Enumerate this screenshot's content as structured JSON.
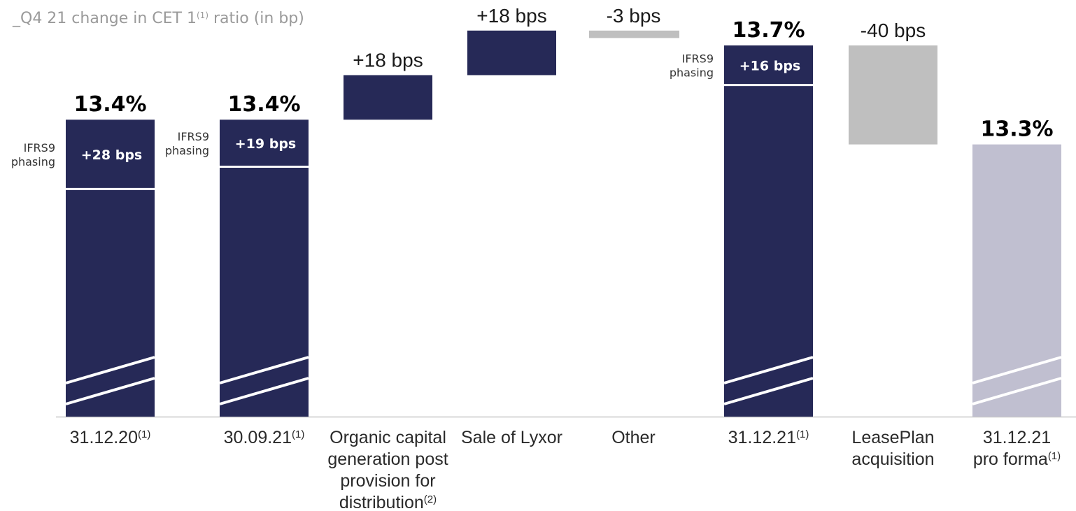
{
  "chart_data": {
    "type": "bar",
    "subtype": "waterfall",
    "title": "_Q4 21 change in CET 1",
    "title_sup": "(1)",
    "title_tail": " ratio (in bp)",
    "colors": {
      "total": "#262957",
      "change_positive": "#262957",
      "change_negative": "#bfbfbf",
      "proforma": "#c0bfd0",
      "separator": "#ffffff",
      "axis": "#c8c8c8"
    },
    "axis_break": true,
    "bars": [
      {
        "kind": "total",
        "category": "31.12.20",
        "cat_sup": "(1)",
        "value": 13.4,
        "label": "13.4%",
        "ifrs9_bps": 28,
        "ifrs9_label": "+28 bps",
        "side_label": [
          "IFRS9",
          "phasing"
        ]
      },
      {
        "kind": "total",
        "category": "30.09.21",
        "cat_sup": "(1)",
        "value": 13.4,
        "label": "13.4%",
        "ifrs9_bps": 19,
        "ifrs9_label": "+19 bps",
        "side_label": [
          "IFRS9",
          "phasing"
        ]
      },
      {
        "kind": "change",
        "category_lines": [
          "Organic capital",
          "generation post",
          "provision for",
          "distribution"
        ],
        "cat_sup": "(2)",
        "start": 13.4,
        "delta_bps": 18,
        "label": "+18 bps"
      },
      {
        "kind": "change",
        "category_lines": [
          "Sale of Lyxor"
        ],
        "start": 13.58,
        "delta_bps": 18,
        "label": "+18 bps"
      },
      {
        "kind": "change",
        "category_lines": [
          "Other"
        ],
        "start": 13.76,
        "delta_bps": -3,
        "label": "-3 bps"
      },
      {
        "kind": "total",
        "category": "31.12.21",
        "cat_sup": "(1)",
        "value": 13.7,
        "label": "13.7%",
        "ifrs9_bps": 16,
        "ifrs9_label": "+16 bps",
        "side_label": [
          "IFRS9",
          "phasing"
        ]
      },
      {
        "kind": "change",
        "category_lines": [
          "LeasePlan",
          "acquisition"
        ],
        "start": 13.7,
        "delta_bps": -40,
        "label": "-40 bps"
      },
      {
        "kind": "proforma",
        "category_lines": [
          "31.12.21",
          "pro forma"
        ],
        "cat_sup": "(1)",
        "value": 13.3,
        "label": "13.3%"
      }
    ]
  }
}
